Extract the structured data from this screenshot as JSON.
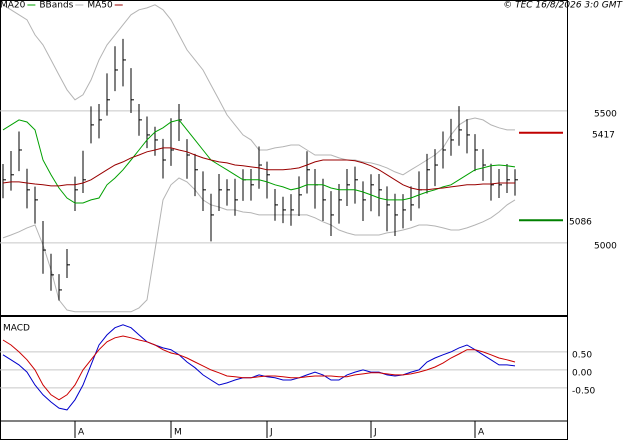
{
  "copyright": "© TEC 16/8/2026 3:0 GMT",
  "chart_data": [
    {
      "type": "ohlc",
      "categories": [
        null,
        null,
        null,
        null,
        null,
        null,
        null,
        null,
        null,
        "A",
        null,
        null,
        null,
        null,
        null,
        null,
        null,
        null,
        null,
        null,
        null,
        "M",
        null,
        null,
        null,
        null,
        null,
        null,
        null,
        null,
        null,
        null,
        null,
        "J",
        null,
        null,
        null,
        null,
        null,
        null,
        null,
        null,
        null,
        null,
        null,
        null,
        "J",
        null,
        null,
        null,
        null,
        null,
        null,
        null,
        null,
        null,
        null,
        null,
        null,
        "A",
        null,
        null,
        null,
        null,
        null
      ],
      "high": [
        5299,
        5348,
        5422,
        5281,
        5213,
        5083,
        4959,
        4882,
        4977,
        5251,
        5349,
        5517,
        5526,
        5642,
        5745,
        5773,
        5662,
        5526,
        5479,
        5440,
        5394,
        5472,
        5526,
        5393,
        5337,
        5271,
        5186,
        5261,
        5241,
        5243,
        5279,
        5280,
        5365,
        5308,
        5204,
        5175,
        5185,
        5252,
        5347,
        5280,
        5243,
        5196,
        5223,
        5280,
        5289,
        5233,
        5260,
        5261,
        5214,
        5186,
        5185,
        5214,
        5271,
        5337,
        5355,
        5422,
        5470,
        5518,
        5469,
        5412,
        5355,
        5300,
        5280,
        5299,
        5279
      ],
      "low": [
        5169,
        5198,
        5272,
        5131,
        5073,
        4883,
        4819,
        4782,
        4867,
        5121,
        5189,
        5377,
        5396,
        5482,
        5575,
        5593,
        5492,
        5406,
        5359,
        5330,
        5244,
        5292,
        5386,
        5243,
        5177,
        5121,
        5006,
        5121,
        5141,
        5103,
        5159,
        5160,
        5205,
        5168,
        5084,
        5075,
        5065,
        5102,
        5187,
        5130,
        5083,
        5026,
        5073,
        5140,
        5149,
        5083,
        5120,
        5101,
        5044,
        5026,
        5055,
        5084,
        5131,
        5187,
        5215,
        5282,
        5330,
        5368,
        5339,
        5272,
        5235,
        5160,
        5170,
        5189,
        5179
      ],
      "close": [
        5239,
        5258,
        5352,
        5201,
        5163,
        4973,
        4879,
        4822,
        4917,
        5201,
        5239,
        5447,
        5466,
        5542,
        5655,
        5693,
        5542,
        5466,
        5409,
        5390,
        5314,
        5352,
        5466,
        5333,
        5277,
        5201,
        5106,
        5201,
        5201,
        5163,
        5239,
        5220,
        5295,
        5258,
        5144,
        5125,
        5125,
        5182,
        5277,
        5220,
        5163,
        5106,
        5163,
        5220,
        5239,
        5163,
        5220,
        5201,
        5144,
        5106,
        5125,
        5144,
        5201,
        5277,
        5295,
        5352,
        5390,
        5428,
        5409,
        5352,
        5295,
        5220,
        5220,
        5239,
        5239
      ],
      "bar_color": "#000000",
      "series": [
        {
          "name": "MA20",
          "color": "#00a000",
          "values": [
            5428,
            5447,
            5466,
            5458,
            5428,
            5314,
            5258,
            5208,
            5170,
            5151,
            5151,
            5163,
            5170,
            5220,
            5246,
            5277,
            5314,
            5352,
            5390,
            5420,
            5436,
            5458,
            5466,
            5428,
            5390,
            5352,
            5314,
            5295,
            5277,
            5258,
            5239,
            5239,
            5239,
            5231,
            5220,
            5212,
            5201,
            5208,
            5220,
            5220,
            5220,
            5208,
            5201,
            5201,
            5201,
            5193,
            5182,
            5170,
            5163,
            5163,
            5163,
            5170,
            5182,
            5193,
            5201,
            5212,
            5220,
            5239,
            5258,
            5277,
            5284,
            5292,
            5295,
            5292,
            5288
          ]
        },
        {
          "name": "BBands",
          "color": "#b4b4b4",
          "upper": [
            5902,
            5883,
            5864,
            5845,
            5788,
            5750,
            5693,
            5636,
            5580,
            5542,
            5561,
            5617,
            5693,
            5750,
            5788,
            5826,
            5864,
            5883,
            5890,
            5902,
            5883,
            5845,
            5788,
            5731,
            5693,
            5655,
            5598,
            5542,
            5485,
            5447,
            5409,
            5390,
            5352,
            5352,
            5360,
            5364,
            5371,
            5371,
            5352,
            5333,
            5333,
            5333,
            5322,
            5314,
            5314,
            5307,
            5303,
            5295,
            5284,
            5269,
            5258,
            5277,
            5295,
            5314,
            5333,
            5360,
            5409,
            5447,
            5466,
            5473,
            5466,
            5447,
            5436,
            5428,
            5428
          ],
          "lower": [
            5019,
            5030,
            5042,
            5057,
            5068,
            4992,
            4898,
            4784,
            4746,
            4739,
            4739,
            4739,
            4739,
            4739,
            4739,
            4739,
            4739,
            4754,
            4784,
            4973,
            5163,
            5220,
            5246,
            5231,
            5201,
            5163,
            5144,
            5136,
            5125,
            5125,
            5117,
            5114,
            5106,
            5106,
            5106,
            5106,
            5106,
            5106,
            5106,
            5095,
            5080,
            5068,
            5049,
            5038,
            5030,
            5030,
            5030,
            5030,
            5038,
            5042,
            5049,
            5057,
            5068,
            5068,
            5064,
            5057,
            5049,
            5049,
            5057,
            5068,
            5080,
            5095,
            5117,
            5144,
            5163
          ]
        },
        {
          "name": "MA50",
          "color": "#990000",
          "values": [
            5227,
            5231,
            5231,
            5227,
            5223,
            5220,
            5216,
            5216,
            5220,
            5220,
            5227,
            5239,
            5258,
            5277,
            5295,
            5307,
            5322,
            5333,
            5345,
            5352,
            5360,
            5360,
            5352,
            5345,
            5333,
            5322,
            5314,
            5307,
            5303,
            5295,
            5292,
            5288,
            5284,
            5277,
            5277,
            5277,
            5280,
            5284,
            5295,
            5307,
            5314,
            5314,
            5314,
            5314,
            5311,
            5303,
            5292,
            5277,
            5258,
            5239,
            5220,
            5208,
            5201,
            5201,
            5205,
            5208,
            5212,
            5216,
            5220,
            5220,
            5223,
            5223,
            5227,
            5227,
            5227
          ]
        }
      ],
      "markers": [
        {
          "value": 5417,
          "color": "#c00000"
        },
        {
          "value": 5086,
          "color": "#008000"
        }
      ],
      "ylim": [
        4727,
        5920
      ],
      "yticks": [
        5000,
        5500
      ],
      "grid": true
    },
    {
      "type": "line",
      "title": "MACD",
      "series": [
        {
          "color": "#0000cc",
          "values": [
            0.42,
            0.28,
            0.14,
            -0.06,
            -0.42,
            -0.69,
            -0.89,
            -1.06,
            -1.11,
            -0.83,
            -0.42,
            0.14,
            0.69,
            0.97,
            1.17,
            1.25,
            1.17,
            0.97,
            0.78,
            0.69,
            0.61,
            0.56,
            0.42,
            0.22,
            0.06,
            -0.14,
            -0.28,
            -0.42,
            -0.36,
            -0.28,
            -0.22,
            -0.22,
            -0.14,
            -0.19,
            -0.22,
            -0.28,
            -0.28,
            -0.22,
            -0.14,
            -0.06,
            -0.14,
            -0.28,
            -0.28,
            -0.14,
            -0.06,
            0,
            -0.06,
            -0.06,
            -0.14,
            -0.17,
            -0.14,
            -0.06,
            0,
            0.22,
            0.33,
            0.42,
            0.5,
            0.61,
            0.69,
            0.56,
            0.42,
            0.28,
            0.14,
            0.14,
            0.11
          ]
        },
        {
          "color": "#cc0000",
          "values": [
            0.83,
            0.69,
            0.5,
            0.28,
            0,
            -0.42,
            -0.69,
            -0.83,
            -0.69,
            -0.42,
            0,
            0.28,
            0.56,
            0.78,
            0.89,
            0.94,
            0.89,
            0.83,
            0.78,
            0.69,
            0.56,
            0.47,
            0.42,
            0.33,
            0.22,
            0.11,
            0,
            -0.08,
            -0.17,
            -0.19,
            -0.22,
            -0.22,
            -0.19,
            -0.17,
            -0.17,
            -0.19,
            -0.22,
            -0.22,
            -0.19,
            -0.17,
            -0.17,
            -0.17,
            -0.19,
            -0.19,
            -0.14,
            -0.11,
            -0.08,
            -0.08,
            -0.11,
            -0.14,
            -0.14,
            -0.11,
            -0.06,
            0,
            0.08,
            0.19,
            0.33,
            0.44,
            0.56,
            0.56,
            0.5,
            0.42,
            0.33,
            0.28,
            0.22
          ]
        }
      ],
      "ylim": [
        -1.39,
        1.44
      ],
      "yticks": [
        {
          "value": 0.5,
          "label": "0.50"
        },
        {
          "value": 0,
          "label": "0.00"
        },
        {
          "value": -0.5,
          "label": "-0.50"
        }
      ],
      "grid": true
    }
  ]
}
